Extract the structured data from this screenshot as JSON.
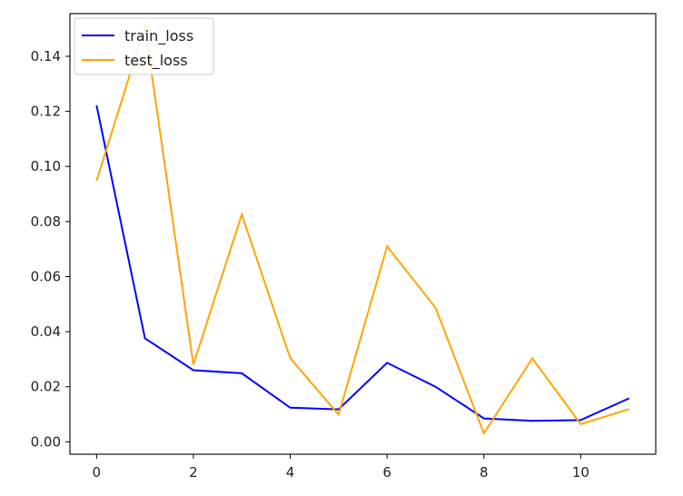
{
  "chart_data": {
    "type": "line",
    "title": "",
    "xlabel": "",
    "ylabel": "",
    "x": [
      0,
      1,
      2,
      3,
      4,
      5,
      6,
      7,
      8,
      9,
      10,
      11
    ],
    "xlim": [
      -0.55,
      11.55
    ],
    "ylim": [
      -0.0045,
      0.1555
    ],
    "xticks": [
      0,
      2,
      4,
      6,
      8,
      10
    ],
    "xtick_labels": [
      "0",
      "2",
      "4",
      "6",
      "8",
      "10"
    ],
    "yticks": [
      0.0,
      0.02,
      0.04,
      0.06,
      0.08,
      0.1,
      0.12,
      0.14
    ],
    "ytick_labels": [
      "0.00",
      "0.02",
      "0.04",
      "0.06",
      "0.08",
      "0.10",
      "0.12",
      "0.14"
    ],
    "grid": false,
    "legend_position": "top-left",
    "series": [
      {
        "name": "train_loss",
        "color": "#0000ff",
        "values": [
          0.1222,
          0.0376,
          0.026,
          0.0249,
          0.0124,
          0.0118,
          0.0287,
          0.02,
          0.0085,
          0.0076,
          0.0079,
          0.0158
        ]
      },
      {
        "name": "test_loss",
        "color": "#ffa500",
        "values": [
          0.0948,
          0.1508,
          0.028,
          0.0826,
          0.0304,
          0.0099,
          0.071,
          0.0487,
          0.0031,
          0.0303,
          0.0064,
          0.0119
        ]
      }
    ]
  }
}
